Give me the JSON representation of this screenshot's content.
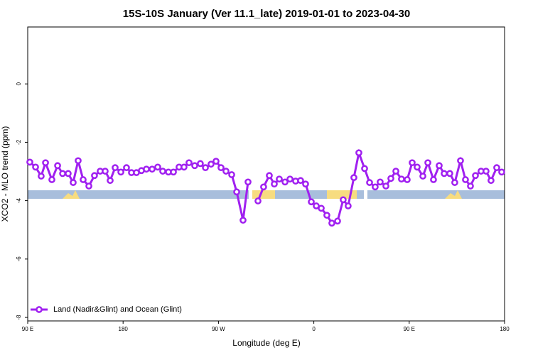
{
  "chart_data": {
    "type": "line",
    "title": "15S-10S January (Ver 11.1_late)   2019-01-01 to 2023-04-30",
    "x_label": "Longitude (deg E)",
    "y_label": "XCO2 - MLO trend (ppm)",
    "xlim": [
      90,
      540
    ],
    "xticks": [
      {
        "value": 90,
        "label": "90 E"
      },
      180,
      {
        "value": 270,
        "label": "90 W"
      },
      {
        "value": 360,
        "label": "0"
      },
      {
        "value": 450,
        "label": "90 E"
      },
      {
        "value": 540,
        "label": "180"
      }
    ],
    "ylim": [
      -8.12,
      1.95
    ],
    "yticks": [
      -8,
      -6,
      -4,
      -2,
      0
    ],
    "legend": "lower left",
    "x": [
      92,
      97.4,
      102.7,
      106.8,
      112.8,
      118.2,
      122.9,
      128.2,
      132.9,
      137.6,
      142.3,
      147.7,
      153,
      158.4,
      163.1,
      167.8,
      172.5,
      177.9,
      183.2,
      187.9,
      192.6,
      197.3,
      202,
      207.4,
      212.7,
      217.4,
      222.8,
      227.5,
      232.8,
      237.5,
      242.2,
      247.6,
      252.9,
      257.7,
      263,
      267.7,
      272.4,
      277.1,
      282.5,
      287.2,
      293.2,
      297.9,
      302.6,
      307.3,
      312.6,
      318,
      322.7,
      327.4,
      332.8,
      337.5,
      342.8,
      347.5,
      352.2,
      357.6,
      362.3,
      367,
      372.3,
      377,
      382.4,
      387.7,
      392.4,
      397.8,
      402.5,
      407.9,
      412.6,
      417.9,
      422.6,
      428,
      432.7,
      437.4,
      442.7,
      448.1,
      452.8,
      457.5,
      462.9,
      467.6,
      472.9,
      478.3,
      483,
      488.3,
      493,
      498.4,
      503.1,
      507.8,
      512.5,
      517.8,
      522.5,
      527.2,
      532.6,
      537.3
    ],
    "series": [
      {
        "name": "Land (Nadir&Glint) and Ocean (Glint)",
        "color": "#a020f0",
        "values": [
          -2.68,
          -2.85,
          -3.16,
          -2.7,
          -3.28,
          -2.8,
          -3.07,
          -3.07,
          -3.38,
          -2.63,
          -3.28,
          -3.5,
          -3.14,
          -2.99,
          -2.99,
          -3.31,
          -2.87,
          -3.02,
          -2.87,
          -3.04,
          -3.04,
          -2.97,
          -2.92,
          -2.92,
          -2.85,
          -2.99,
          -3.02,
          -3.02,
          -2.85,
          -2.85,
          -2.7,
          -2.8,
          -2.73,
          -2.87,
          -2.75,
          -2.65,
          -2.87,
          -2.99,
          -3.11,
          -3.7,
          -4.67,
          -3.36,
          null,
          -4.01,
          -3.53,
          -3.14,
          -3.43,
          -3.26,
          -3.36,
          -3.26,
          -3.33,
          -3.31,
          -3.43,
          -4.04,
          -4.18,
          -4.26,
          -4.5,
          -4.77,
          -4.7,
          -3.97,
          -4.18,
          -3.21,
          -2.36,
          -2.9,
          -3.38,
          -3.53,
          -3.36,
          -3.5,
          -3.24,
          -2.99,
          -3.26,
          -3.28,
          -2.7,
          -2.85,
          -3.16,
          -2.7,
          -3.28,
          -2.8,
          -3.07,
          -3.07,
          -3.38,
          -2.63,
          -3.28,
          -3.5,
          -3.14,
          -2.99,
          -2.99,
          -3.31,
          -2.87,
          -3.02
        ]
      }
    ]
  }
}
